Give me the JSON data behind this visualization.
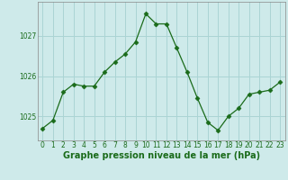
{
  "x": [
    0,
    1,
    2,
    3,
    4,
    5,
    6,
    7,
    8,
    9,
    10,
    11,
    12,
    13,
    14,
    15,
    16,
    17,
    18,
    19,
    20,
    21,
    22,
    23
  ],
  "y": [
    1024.7,
    1024.9,
    1025.6,
    1025.8,
    1025.75,
    1025.75,
    1026.1,
    1026.35,
    1026.55,
    1026.85,
    1027.55,
    1027.3,
    1027.3,
    1026.7,
    1026.1,
    1025.45,
    1024.85,
    1024.65,
    1025.0,
    1025.2,
    1025.55,
    1025.6,
    1025.65,
    1025.85
  ],
  "line_color": "#1a6b1a",
  "marker": "D",
  "marker_size": 2.5,
  "bg_color": "#ceeaea",
  "grid_color": "#aad4d4",
  "ylabel_ticks": [
    1025,
    1026,
    1027
  ],
  "xlabel_ticks": [
    0,
    1,
    2,
    3,
    4,
    5,
    6,
    7,
    8,
    9,
    10,
    11,
    12,
    13,
    14,
    15,
    16,
    17,
    18,
    19,
    20,
    21,
    22,
    23
  ],
  "xlabel": "Graphe pression niveau de la mer (hPa)",
  "xlim": [
    -0.5,
    23.5
  ],
  "ylim": [
    1024.4,
    1027.85
  ],
  "tick_fontsize": 5.5,
  "label_fontsize": 7.0
}
